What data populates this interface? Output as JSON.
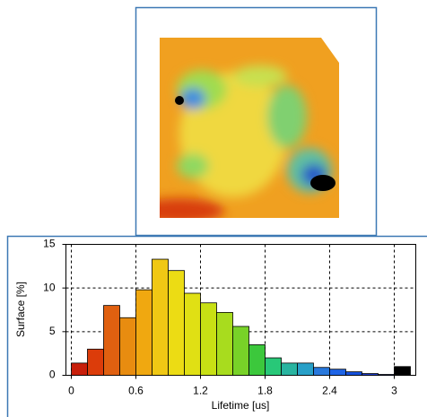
{
  "chart_data": {
    "type": "histogram",
    "xlabel": "Lifetime [us]",
    "ylabel": "Surface [%]",
    "bins": [
      0,
      0.15,
      0.3,
      0.45,
      0.6,
      0.75,
      0.9,
      1.05,
      1.2,
      1.35,
      1.5,
      1.65,
      1.8,
      1.95,
      2.1,
      2.25,
      2.4,
      2.55,
      2.7,
      2.85,
      3.0,
      3.15
    ],
    "values": [
      1.4,
      3.0,
      8.0,
      6.6,
      9.8,
      13.3,
      12.0,
      9.4,
      8.3,
      7.2,
      5.6,
      3.5,
      2.0,
      1.4,
      1.4,
      0.9,
      0.7,
      0.4,
      0.2,
      0.1,
      1.0
    ],
    "colors": [
      "#c81e0a",
      "#dc3c0a",
      "#e06010",
      "#e88c10",
      "#f0a810",
      "#f0c814",
      "#ecdc14",
      "#e0e014",
      "#c8e014",
      "#a8dc1e",
      "#78d228",
      "#3cc83c",
      "#28c878",
      "#28b4a0",
      "#28a0c8",
      "#2878dc",
      "#1e64e6",
      "#1450dc",
      "#1e3cc8",
      "#1428a0",
      "#000000"
    ],
    "xlim": [
      -0.05,
      3.2
    ],
    "ylim": [
      0,
      15
    ],
    "xticks": [
      0,
      0.6,
      1.2,
      1.8,
      2.4,
      3
    ],
    "yticks": [
      0,
      5,
      10,
      15
    ],
    "grid": true
  }
}
